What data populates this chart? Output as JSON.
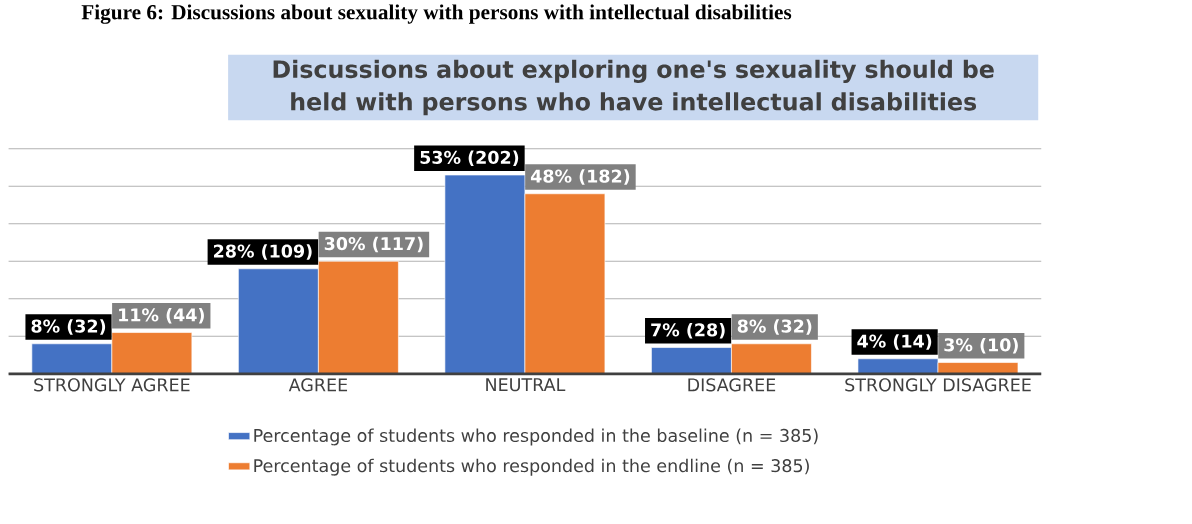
{
  "chart_data": {
    "type": "bar",
    "title": "Discussions about exploring one's sexuality should be held with persons who have intellectual disabilities",
    "annotations": [
      "Figure 6: Discussions about sexuality with persons with intellectual disabilities"
    ],
    "categories": [
      "STRONGLY AGREE",
      "AGREE",
      "NEUTRAL",
      "DISAGREE",
      "STRONGLY DISAGREE"
    ],
    "series": [
      {
        "name": "Percentage of students who responded in the baseline (n = 385)",
        "color": "#4472c4",
        "values": [
          8,
          28,
          53,
          7,
          4
        ],
        "value_labels": [
          "8% (32)",
          "28% (109)",
          "53% (202)",
          "7% (28)",
          "4% (14)"
        ]
      },
      {
        "name": "Percentage of students who responded in the endline (n = 385)",
        "color": "#ed7d31",
        "values": [
          11,
          30,
          48,
          8,
          3
        ],
        "value_labels": [
          "11% (44)",
          "30% (117)",
          "48% (182)",
          "8% (32)",
          "3% (10)"
        ]
      }
    ],
    "ylim": [
      0,
      60
    ],
    "yticks": [
      {
        "value": 0,
        "label": null
      },
      {
        "value": 10,
        "label": null
      },
      {
        "value": 20,
        "label": null
      },
      {
        "value": 30,
        "label": null
      },
      {
        "value": 40,
        "label": null
      },
      {
        "value": 50,
        "label": null
      },
      {
        "value": 60,
        "label": null
      }
    ],
    "grid": "y",
    "tick_labels": "x",
    "legend": "bottom"
  }
}
